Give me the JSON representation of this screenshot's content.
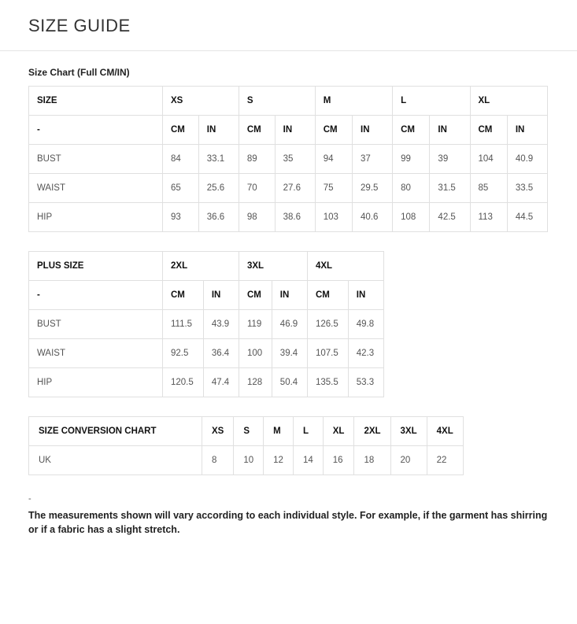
{
  "page_title": "SIZE GUIDE",
  "chart1": {
    "title": "Size Chart (Full CM/IN)",
    "size_header": "SIZE",
    "sizes": [
      "XS",
      "S",
      "M",
      "L",
      "XL"
    ],
    "units": [
      "CM",
      "IN"
    ],
    "dash": "-",
    "rows": [
      {
        "label": "BUST",
        "vals": [
          "84",
          "33.1",
          "89",
          "35",
          "94",
          "37",
          "99",
          "39",
          "104",
          "40.9"
        ]
      },
      {
        "label": "WAIST",
        "vals": [
          "65",
          "25.6",
          "70",
          "27.6",
          "75",
          "29.5",
          "80",
          "31.5",
          "85",
          "33.5"
        ]
      },
      {
        "label": "HIP",
        "vals": [
          "93",
          "36.6",
          "98",
          "38.6",
          "103",
          "40.6",
          "108",
          "42.5",
          "113",
          "44.5"
        ]
      }
    ]
  },
  "chart2": {
    "size_header": "PLUS SIZE",
    "sizes": [
      "2XL",
      "3XL",
      "4XL"
    ],
    "units": [
      "CM",
      "IN"
    ],
    "dash": "-",
    "rows": [
      {
        "label": "BUST",
        "vals": [
          "111.5",
          "43.9",
          "119",
          "46.9",
          "126.5",
          "49.8"
        ]
      },
      {
        "label": "WAIST",
        "vals": [
          "92.5",
          "36.4",
          "100",
          "39.4",
          "107.5",
          "42.3"
        ]
      },
      {
        "label": "HIP",
        "vals": [
          "120.5",
          "47.4",
          "128",
          "50.4",
          "135.5",
          "53.3"
        ]
      }
    ]
  },
  "chart3": {
    "header": "SIZE CONVERSION CHART",
    "sizes": [
      "XS",
      "S",
      "M",
      "L",
      "XL",
      "2XL",
      "3XL",
      "4XL"
    ],
    "row_label": "UK",
    "vals": [
      "8",
      "10",
      "12",
      "14",
      "16",
      "18",
      "20",
      "22"
    ]
  },
  "note_dash": "-",
  "note": "The measurements shown will vary according to each individual style. For example, if the garment has shirring or if a fabric has a slight stretch."
}
